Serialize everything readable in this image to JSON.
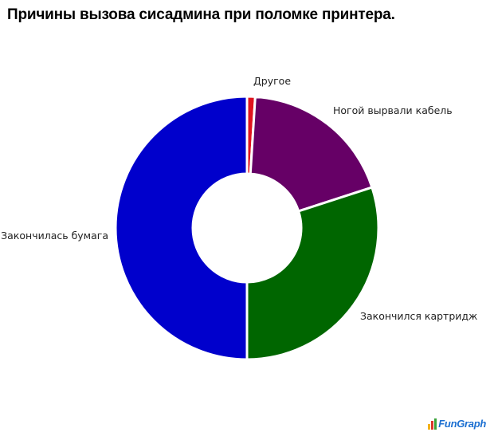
{
  "header": {
    "title": "Причины вызова сисадмина при поломке принтера."
  },
  "chart_data": {
    "type": "pie",
    "style": "donut",
    "title": "Причины вызова сисадмина при поломке принтера.",
    "slices": [
      {
        "label": "Другое",
        "value": 1,
        "color": "#e0141e"
      },
      {
        "label": "Ногой вырвали кабель",
        "value": 19,
        "color": "#660066"
      },
      {
        "label": "Закончился картридж",
        "value": 30,
        "color": "#006600"
      },
      {
        "label": "Закончилась бумага",
        "value": 50,
        "color": "#0000cc"
      }
    ],
    "legend": "none"
  },
  "branding": {
    "logo_text": "FunGraph",
    "logo_bar_colors": [
      "#f2b21b",
      "#d9362b",
      "#3aa23a"
    ]
  }
}
